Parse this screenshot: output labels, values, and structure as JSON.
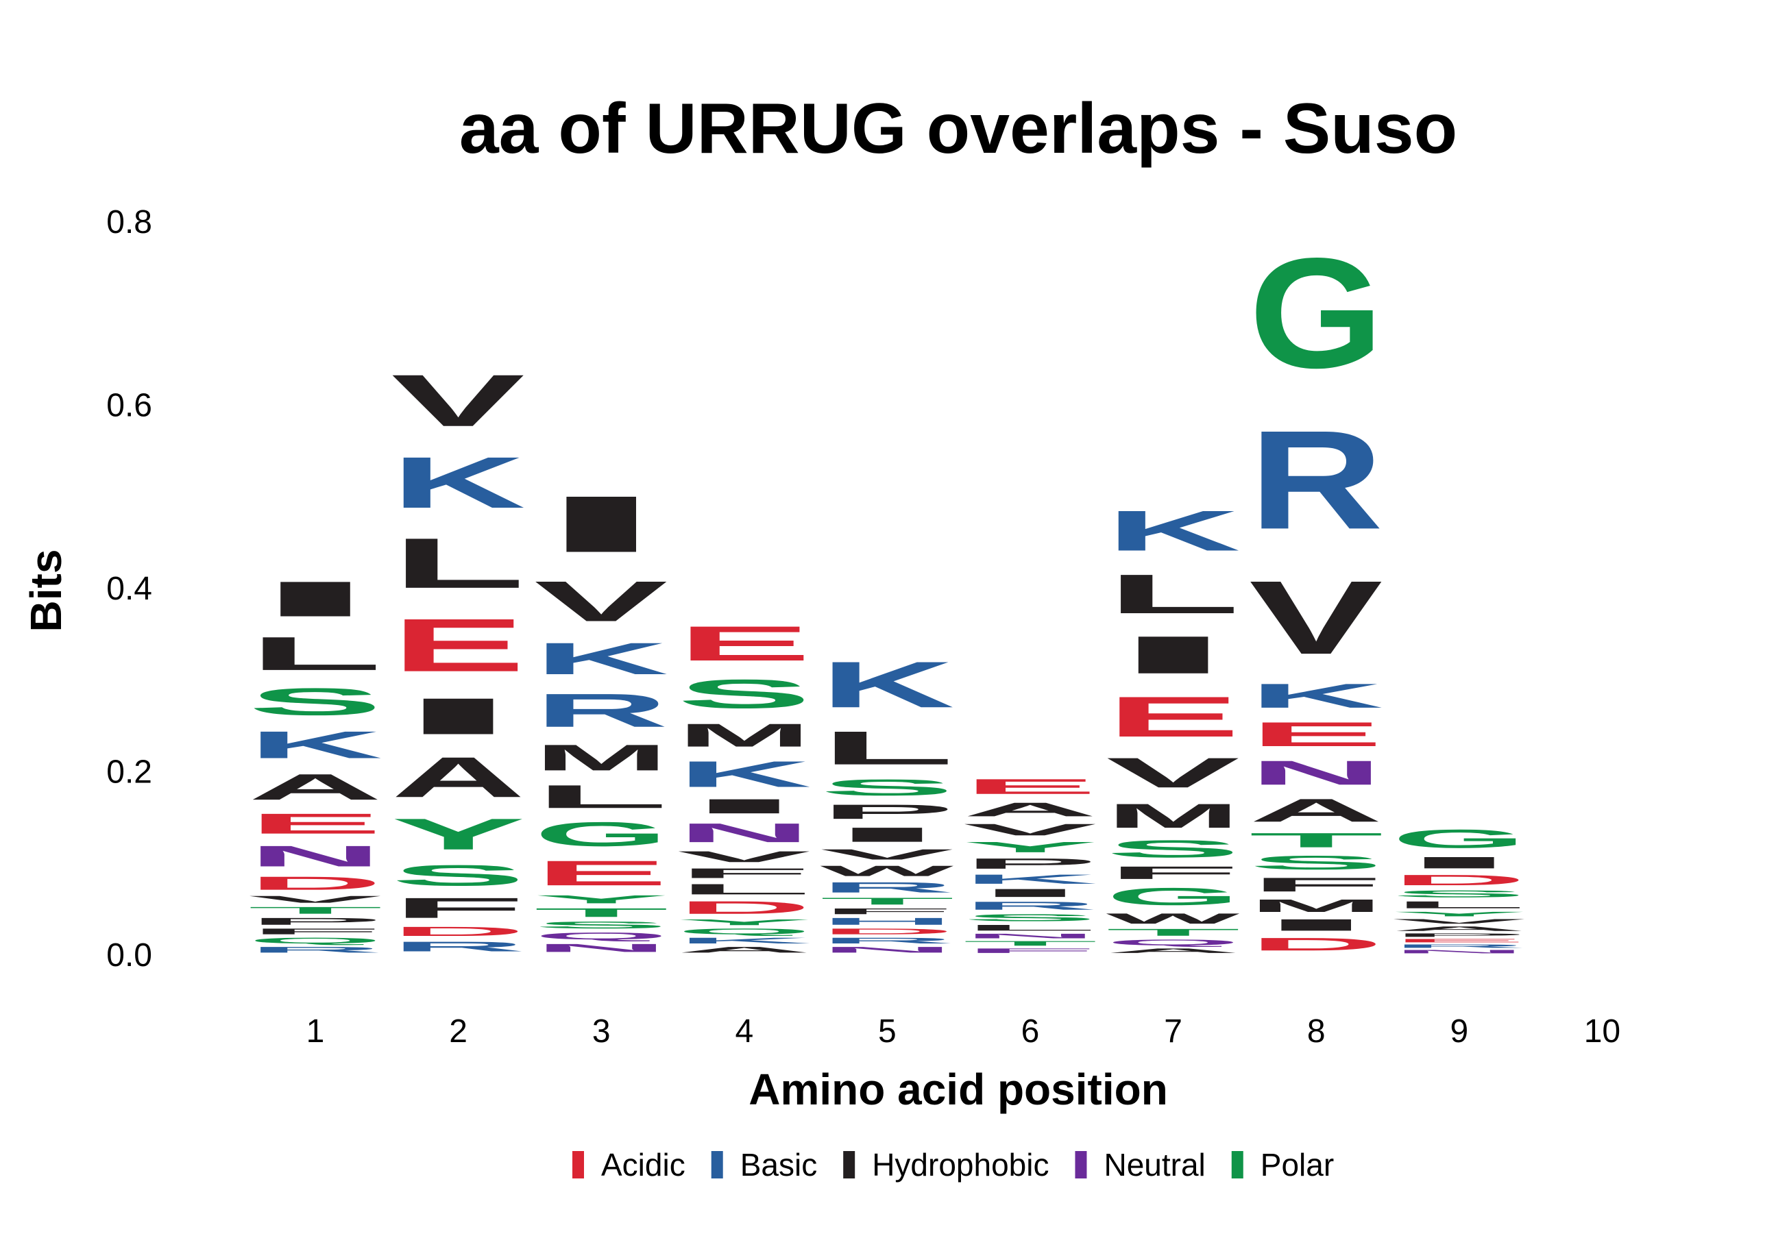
{
  "chart_data": {
    "type": "sequence-logo",
    "title": "aa of URRUG overlaps - Suso",
    "xlabel": "Amino acid position",
    "ylabel": "Bits",
    "ylim": [
      0,
      0.8
    ],
    "yticks": [
      "0.0",
      "0.2",
      "0.4",
      "0.6",
      "0.8"
    ],
    "xticks": [
      "1",
      "2",
      "3",
      "4",
      "5",
      "6",
      "7",
      "8",
      "9",
      "10"
    ],
    "grid": false,
    "legend_position": "bottom",
    "legend": [
      {
        "label": "Acidic",
        "color": "#DA2533"
      },
      {
        "label": "Basic",
        "color": "#285E9E"
      },
      {
        "label": "Hydrophobic",
        "color": "#231F20"
      },
      {
        "label": "Neutral",
        "color": "#6A2B9A"
      },
      {
        "label": "Polar",
        "color": "#0F9448"
      }
    ],
    "positions": [
      {
        "pos": 1,
        "letters": [
          {
            "aa": "R",
            "class": "Basic",
            "bits": 0.01
          },
          {
            "aa": "Q",
            "class": "Polar",
            "bits": 0.01
          },
          {
            "aa": "F",
            "class": "Hydrophobic",
            "bits": 0.01
          },
          {
            "aa": "P",
            "class": "Hydrophobic",
            "bits": 0.012
          },
          {
            "aa": "T",
            "class": "Polar",
            "bits": 0.012
          },
          {
            "aa": "V",
            "class": "Hydrophobic",
            "bits": 0.012
          },
          {
            "aa": "D",
            "class": "Acidic",
            "bits": 0.023
          },
          {
            "aa": "N",
            "class": "Neutral",
            "bits": 0.036
          },
          {
            "aa": "E",
            "class": "Acidic",
            "bits": 0.035
          },
          {
            "aa": "A",
            "class": "Hydrophobic",
            "bits": 0.045
          },
          {
            "aa": "K",
            "class": "Basic",
            "bits": 0.047
          },
          {
            "aa": "S",
            "class": "Polar",
            "bits": 0.047
          },
          {
            "aa": "L",
            "class": "Hydrophobic",
            "bits": 0.058
          },
          {
            "aa": "I",
            "class": "Hydrophobic",
            "bits": 0.061
          }
        ]
      },
      {
        "pos": 2,
        "letters": [
          {
            "aa": "R",
            "class": "Basic",
            "bits": 0.017
          },
          {
            "aa": "D",
            "class": "Acidic",
            "bits": 0.016
          },
          {
            "aa": "F",
            "class": "Hydrophobic",
            "bits": 0.035
          },
          {
            "aa": "S",
            "class": "Polar",
            "bits": 0.036
          },
          {
            "aa": "Y",
            "class": "Polar",
            "bits": 0.054
          },
          {
            "aa": "A",
            "class": "Hydrophobic",
            "bits": 0.07
          },
          {
            "aa": "I",
            "class": "Hydrophobic",
            "bits": 0.063
          },
          {
            "aa": "E",
            "class": "Acidic",
            "bits": 0.092
          },
          {
            "aa": "L",
            "class": "Hydrophobic",
            "bits": 0.087
          },
          {
            "aa": "K",
            "class": "Basic",
            "bits": 0.089
          },
          {
            "aa": "V",
            "class": "Hydrophobic",
            "bits": 0.09
          }
        ]
      },
      {
        "pos": 3,
        "letters": [
          {
            "aa": "N",
            "class": "Neutral",
            "bits": 0.014
          },
          {
            "aa": "Q",
            "class": "Neutral",
            "bits": 0.012
          },
          {
            "aa": "S",
            "class": "Polar",
            "bits": 0.012
          },
          {
            "aa": "T",
            "class": "Polar",
            "bits": 0.015
          },
          {
            "aa": "Y",
            "class": "Polar",
            "bits": 0.014
          },
          {
            "aa": "E",
            "class": "Acidic",
            "bits": 0.043
          },
          {
            "aa": "G",
            "class": "Polar",
            "bits": 0.042
          },
          {
            "aa": "L",
            "class": "Hydrophobic",
            "bits": 0.04
          },
          {
            "aa": "M",
            "class": "Hydrophobic",
            "bits": 0.045
          },
          {
            "aa": "R",
            "class": "Basic",
            "bits": 0.058
          },
          {
            "aa": "K",
            "class": "Basic",
            "bits": 0.055
          },
          {
            "aa": "V",
            "class": "Hydrophobic",
            "bits": 0.07
          },
          {
            "aa": "I",
            "class": "Hydrophobic",
            "bits": 0.098
          }
        ]
      },
      {
        "pos": 4,
        "letters": [
          {
            "aa": "A",
            "class": "Hydrophobic",
            "bits": 0.01
          },
          {
            "aa": "K",
            "class": "Basic",
            "bits": 0.01
          },
          {
            "aa": "Q",
            "class": "Polar",
            "bits": 0.01
          },
          {
            "aa": "Y",
            "class": "Polar",
            "bits": 0.01
          },
          {
            "aa": "D",
            "class": "Acidic",
            "bits": 0.022
          },
          {
            "aa": "L",
            "class": "Hydrophobic",
            "bits": 0.018
          },
          {
            "aa": "F",
            "class": "Hydrophobic",
            "bits": 0.017
          },
          {
            "aa": "V",
            "class": "Hydrophobic",
            "bits": 0.019
          },
          {
            "aa": "N",
            "class": "Neutral",
            "bits": 0.033
          },
          {
            "aa": "I",
            "class": "Hydrophobic",
            "bits": 0.025
          },
          {
            "aa": "K",
            "class": "Basic",
            "bits": 0.045
          },
          {
            "aa": "M",
            "class": "Hydrophobic",
            "bits": 0.04
          },
          {
            "aa": "S",
            "class": "Polar",
            "bits": 0.05
          },
          {
            "aa": "E",
            "class": "Acidic",
            "bits": 0.06
          }
        ]
      },
      {
        "pos": 5,
        "letters": [
          {
            "aa": "N",
            "class": "Neutral",
            "bits": 0.01
          },
          {
            "aa": "R",
            "class": "Basic",
            "bits": 0.01
          },
          {
            "aa": "D",
            "class": "Acidic",
            "bits": 0.01
          },
          {
            "aa": "H",
            "class": "Basic",
            "bits": 0.012
          },
          {
            "aa": "F",
            "class": "Hydrophobic",
            "bits": 0.01
          },
          {
            "aa": "T",
            "class": "Polar",
            "bits": 0.012
          },
          {
            "aa": "R",
            "class": "Basic",
            "bits": 0.018
          },
          {
            "aa": "W",
            "class": "Hydrophobic",
            "bits": 0.018
          },
          {
            "aa": "V",
            "class": "Hydrophobic",
            "bits": 0.018
          },
          {
            "aa": "I",
            "class": "Hydrophobic",
            "bits": 0.025
          },
          {
            "aa": "P",
            "class": "Hydrophobic",
            "bits": 0.025
          },
          {
            "aa": "S",
            "class": "Polar",
            "bits": 0.028
          },
          {
            "aa": "L",
            "class": "Hydrophobic",
            "bits": 0.058
          },
          {
            "aa": "K",
            "class": "Basic",
            "bits": 0.08
          }
        ]
      },
      {
        "pos": 6,
        "letters": [
          {
            "aa": "F",
            "class": "Neutral",
            "bits": 0.008
          },
          {
            "aa": "T",
            "class": "Polar",
            "bits": 0.008
          },
          {
            "aa": "N",
            "class": "Neutral",
            "bits": 0.008
          },
          {
            "aa": "L",
            "class": "Hydrophobic",
            "bits": 0.01
          },
          {
            "aa": "S",
            "class": "Polar",
            "bits": 0.012
          },
          {
            "aa": "R",
            "class": "Basic",
            "bits": 0.014
          },
          {
            "aa": "I",
            "class": "Hydrophobic",
            "bits": 0.014
          },
          {
            "aa": "K",
            "class": "Basic",
            "bits": 0.016
          },
          {
            "aa": "P",
            "class": "Hydrophobic",
            "bits": 0.018
          },
          {
            "aa": "Y",
            "class": "Polar",
            "bits": 0.018
          },
          {
            "aa": "V",
            "class": "Hydrophobic",
            "bits": 0.02
          },
          {
            "aa": "A",
            "class": "Hydrophobic",
            "bits": 0.024
          },
          {
            "aa": "E",
            "class": "Acidic",
            "bits": 0.026
          }
        ]
      },
      {
        "pos": 7,
        "letters": [
          {
            "aa": "A",
            "class": "Hydrophobic",
            "bits": 0.008
          },
          {
            "aa": "Q",
            "class": "Neutral",
            "bits": 0.01
          },
          {
            "aa": "T",
            "class": "Polar",
            "bits": 0.012
          },
          {
            "aa": "W",
            "class": "Hydrophobic",
            "bits": 0.018
          },
          {
            "aa": "G",
            "class": "Polar",
            "bits": 0.03
          },
          {
            "aa": "F",
            "class": "Hydrophobic",
            "bits": 0.022
          },
          {
            "aa": "S",
            "class": "Polar",
            "bits": 0.03
          },
          {
            "aa": "M",
            "class": "Hydrophobic",
            "bits": 0.042
          },
          {
            "aa": "V",
            "class": "Hydrophobic",
            "bits": 0.052
          },
          {
            "aa": "E",
            "class": "Acidic",
            "bits": 0.07
          },
          {
            "aa": "I",
            "class": "Hydrophobic",
            "bits": 0.065
          },
          {
            "aa": "L",
            "class": "Hydrophobic",
            "bits": 0.068
          },
          {
            "aa": "K",
            "class": "Basic",
            "bits": 0.07
          }
        ]
      },
      {
        "pos": 8,
        "letters": [
          {
            "aa": "D",
            "class": "Acidic",
            "bits": 0.022
          },
          {
            "aa": "I",
            "class": "Hydrophobic",
            "bits": 0.02
          },
          {
            "aa": "M",
            "class": "Hydrophobic",
            "bits": 0.022
          },
          {
            "aa": "F",
            "class": "Hydrophobic",
            "bits": 0.024
          },
          {
            "aa": "S",
            "class": "Polar",
            "bits": 0.024
          },
          {
            "aa": "T",
            "class": "Polar",
            "bits": 0.025
          },
          {
            "aa": "A",
            "class": "Hydrophobic",
            "bits": 0.04
          },
          {
            "aa": "N",
            "class": "Neutral",
            "bits": 0.042
          },
          {
            "aa": "E",
            "class": "Acidic",
            "bits": 0.042
          },
          {
            "aa": "K",
            "class": "Basic",
            "bits": 0.042
          },
          {
            "aa": "V",
            "class": "Hydrophobic",
            "bits": 0.128
          },
          {
            "aa": "R",
            "class": "Basic",
            "bits": 0.172
          },
          {
            "aa": "G",
            "class": "Polar",
            "bits": 0.192
          }
        ]
      },
      {
        "pos": 9,
        "letters": [
          {
            "aa": "N",
            "class": "Neutral",
            "bits": 0.006
          },
          {
            "aa": "R",
            "class": "Basic",
            "bits": 0.006
          },
          {
            "aa": "E",
            "class": "Acidic",
            "bits": 0.006
          },
          {
            "aa": "P",
            "class": "Hydrophobic",
            "bits": 0.006
          },
          {
            "aa": "A",
            "class": "Hydrophobic",
            "bits": 0.008
          },
          {
            "aa": "V",
            "class": "Hydrophobic",
            "bits": 0.008
          },
          {
            "aa": "Y",
            "class": "Polar",
            "bits": 0.008
          },
          {
            "aa": "L",
            "class": "Hydrophobic",
            "bits": 0.012
          },
          {
            "aa": "S",
            "class": "Polar",
            "bits": 0.012
          },
          {
            "aa": "D",
            "class": "Acidic",
            "bits": 0.018
          },
          {
            "aa": "I",
            "class": "Hydrophobic",
            "bits": 0.02
          },
          {
            "aa": "G",
            "class": "Polar",
            "bits": 0.032
          }
        ]
      },
      {
        "pos": 10,
        "letters": []
      }
    ]
  }
}
